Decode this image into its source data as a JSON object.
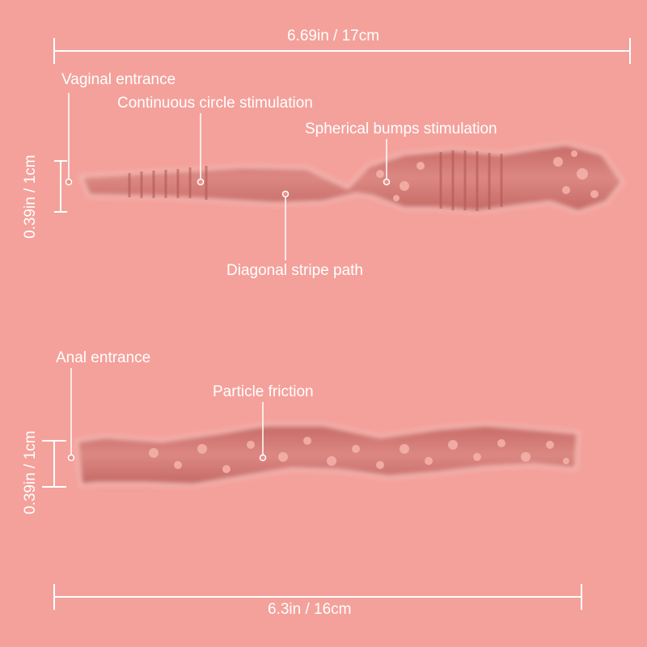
{
  "colors": {
    "background": "#f4a19b",
    "channel": "#d9817c",
    "channel_dark": "#b9605c",
    "bump": "#f6b3ac",
    "annotation": "#ffffff"
  },
  "vaginal": {
    "length_label": "6.69in / 17cm",
    "width_label": "0.39in / 1cm",
    "callouts": {
      "entrance": "Vaginal entrance",
      "circle": "Continuous circle stimulation",
      "bumps": "Spherical bumps stimulation",
      "diagonal": "Diagonal stripe path"
    }
  },
  "anal": {
    "length_label": "6.3in / 16cm",
    "width_label": "0.39in / 1cm",
    "callouts": {
      "entrance": "Anal entrance",
      "particle": "Particle friction"
    }
  }
}
